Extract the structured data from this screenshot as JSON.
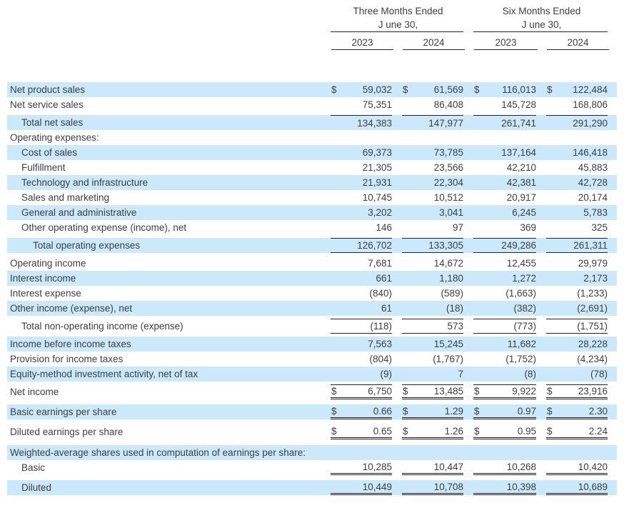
{
  "table": {
    "currency_symbol": "$",
    "col_groups": [
      {
        "title": "Three Months Ended",
        "subtitle": "J une 30,",
        "years": [
          "2023",
          "2024"
        ]
      },
      {
        "title": "Six Months Ended",
        "subtitle": "J une 30,",
        "years": [
          "2023",
          "2024"
        ]
      }
    ],
    "rows": [
      {
        "label": "Net product sales",
        "indent": 0,
        "highlight": true,
        "dollar": true,
        "values": [
          "59,032",
          "61,569",
          "116,013",
          "122,484"
        ],
        "top_border": false,
        "bottom_border": "none",
        "gap_before": 0
      },
      {
        "label": "Net service sales",
        "indent": 0,
        "highlight": false,
        "dollar": false,
        "values": [
          "75,351",
          "86,408",
          "145,728",
          "168,806"
        ],
        "top_border": false,
        "bottom_border": "none",
        "gap_before": 0
      },
      {
        "label": "Total net sales",
        "indent": 1,
        "highlight": true,
        "dollar": false,
        "values": [
          "134,383",
          "147,977",
          "261,741",
          "291,290"
        ],
        "top_border": true,
        "bottom_border": "none",
        "gap_before": 4
      },
      {
        "label": "Operating expenses:",
        "indent": 0,
        "highlight": false,
        "dollar": false,
        "values": [],
        "top_border": false,
        "bottom_border": "none",
        "gap_before": 0
      },
      {
        "label": "Cost of sales",
        "indent": 1,
        "highlight": true,
        "dollar": false,
        "values": [
          "69,373",
          "73,785",
          "137,164",
          "146,418"
        ],
        "top_border": false,
        "bottom_border": "none",
        "gap_before": 0
      },
      {
        "label": "Fulfillment",
        "indent": 1,
        "highlight": false,
        "dollar": false,
        "values": [
          "21,305",
          "23,566",
          "42,210",
          "45,883"
        ],
        "top_border": false,
        "bottom_border": "none",
        "gap_before": 0
      },
      {
        "label": "Technology and infrastructure",
        "indent": 1,
        "highlight": true,
        "dollar": false,
        "values": [
          "21,931",
          "22,304",
          "42,381",
          "42,728"
        ],
        "top_border": false,
        "bottom_border": "none",
        "gap_before": 0
      },
      {
        "label": "Sales and marketing",
        "indent": 1,
        "highlight": false,
        "dollar": false,
        "values": [
          "10,745",
          "10,512",
          "20,917",
          "20,174"
        ],
        "top_border": false,
        "bottom_border": "none",
        "gap_before": 0
      },
      {
        "label": "General and administrative",
        "indent": 1,
        "highlight": true,
        "dollar": false,
        "values": [
          "3,202",
          "3,041",
          "6,245",
          "5,783"
        ],
        "top_border": false,
        "bottom_border": "none",
        "gap_before": 0
      },
      {
        "label": "Other operating expense (income), net",
        "indent": 1,
        "highlight": false,
        "dollar": false,
        "values": [
          "146",
          "97",
          "369",
          "325"
        ],
        "top_border": false,
        "bottom_border": "none",
        "gap_before": 0
      },
      {
        "label": "Total operating expenses",
        "indent": 2,
        "highlight": true,
        "dollar": false,
        "values": [
          "126,702",
          "133,305",
          "249,286",
          "261,311"
        ],
        "top_border": true,
        "bottom_border": "single",
        "gap_before": 4
      },
      {
        "label": "Operating income",
        "indent": 0,
        "highlight": false,
        "dollar": false,
        "values": [
          "7,681",
          "14,672",
          "12,455",
          "29,979"
        ],
        "top_border": false,
        "bottom_border": "none",
        "gap_before": 4
      },
      {
        "label": "Interest income",
        "indent": 0,
        "highlight": true,
        "dollar": false,
        "values": [
          "661",
          "1,180",
          "1,272",
          "2,173"
        ],
        "top_border": false,
        "bottom_border": "none",
        "gap_before": 0
      },
      {
        "label": "Interest expense",
        "indent": 0,
        "highlight": false,
        "dollar": false,
        "values": [
          "(840)",
          "(589)",
          "(1,663)",
          "(1,233)"
        ],
        "top_border": false,
        "bottom_border": "none",
        "gap_before": 0
      },
      {
        "label": "Other income (expense), net",
        "indent": 0,
        "highlight": true,
        "dollar": false,
        "values": [
          "61",
          "(18)",
          "(382)",
          "(2,691)"
        ],
        "top_border": false,
        "bottom_border": "none",
        "gap_before": 0
      },
      {
        "label": "Total non-operating income (expense)",
        "indent": 1,
        "highlight": false,
        "dollar": false,
        "values": [
          "(118)",
          "573",
          "(773)",
          "(1,751)"
        ],
        "top_border": true,
        "bottom_border": "single",
        "gap_before": 4
      },
      {
        "label": "Income before income taxes",
        "indent": 0,
        "highlight": true,
        "dollar": false,
        "values": [
          "7,563",
          "15,245",
          "11,682",
          "28,228"
        ],
        "top_border": false,
        "bottom_border": "none",
        "gap_before": 4
      },
      {
        "label": "Provision for income taxes",
        "indent": 0,
        "highlight": false,
        "dollar": false,
        "values": [
          "(804)",
          "(1,767)",
          "(1,752)",
          "(4,234)"
        ],
        "top_border": false,
        "bottom_border": "none",
        "gap_before": 0
      },
      {
        "label": "Equity-method investment activity, net of tax",
        "indent": 0,
        "highlight": true,
        "dollar": false,
        "values": [
          "(9)",
          "7",
          "(8)",
          "(78)"
        ],
        "top_border": false,
        "bottom_border": "none",
        "gap_before": 0
      },
      {
        "label": "Net income",
        "indent": 0,
        "highlight": false,
        "dollar": true,
        "values": [
          "6,750",
          "13,485",
          "9,922",
          "23,916"
        ],
        "top_border": true,
        "bottom_border": "double",
        "gap_before": 4
      },
      {
        "label": "Basic earnings per share",
        "indent": 0,
        "highlight": true,
        "dollar": true,
        "values": [
          "0.66",
          "1.29",
          "0.97",
          "2.30"
        ],
        "top_border": false,
        "bottom_border": "double",
        "gap_before": 7
      },
      {
        "label": "Diluted earnings per share",
        "indent": 0,
        "highlight": false,
        "dollar": true,
        "values": [
          "0.65",
          "1.26",
          "0.95",
          "2.24"
        ],
        "top_border": false,
        "bottom_border": "double",
        "gap_before": 7
      },
      {
        "label": "Weighted-average shares used in computation of earnings per share:",
        "indent": 0,
        "highlight": true,
        "dollar": false,
        "values": [],
        "top_border": false,
        "bottom_border": "none",
        "gap_before": 8
      },
      {
        "label": "Basic",
        "indent": 1,
        "highlight": false,
        "dollar": false,
        "values": [
          "10,285",
          "10,447",
          "10,268",
          "10,420"
        ],
        "top_border": false,
        "bottom_border": "double",
        "gap_before": 0
      },
      {
        "label": "Diluted",
        "indent": 1,
        "highlight": true,
        "dollar": false,
        "values": [
          "10,449",
          "10,708",
          "10,398",
          "10,689"
        ],
        "top_border": false,
        "bottom_border": "double",
        "gap_before": 7
      }
    ]
  },
  "colors": {
    "highlight": "#cbe9fa",
    "text": "#3e3e3e",
    "rule": "#222222"
  }
}
